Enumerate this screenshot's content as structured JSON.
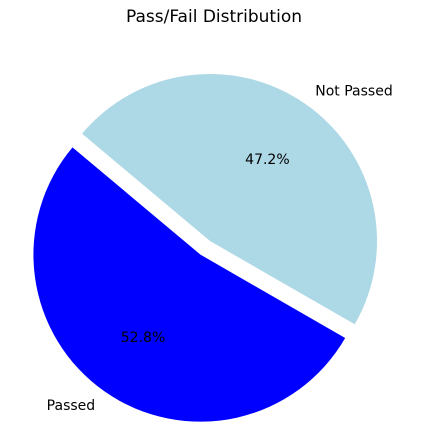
{
  "chart_data": {
    "type": "pie",
    "title": "Pass/Fail Distribution",
    "labels": [
      "Passed",
      "Not Passed"
    ],
    "values": [
      52.8,
      47.2
    ],
    "percent_labels": [
      "52.8%",
      "47.2%"
    ],
    "colors": [
      "#0000ff",
      "#add8e6"
    ],
    "explode": [
      0.1,
      0.0
    ],
    "start_angle_deg": 140,
    "legend": "none"
  }
}
